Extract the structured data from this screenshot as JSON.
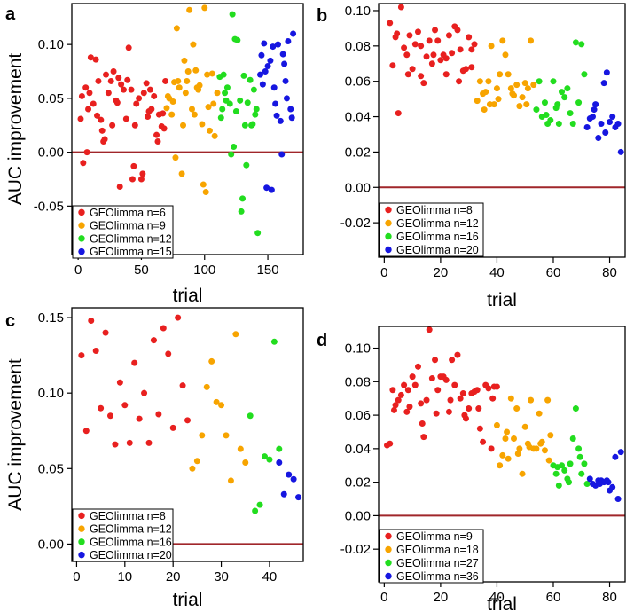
{
  "chart_data": [
    {
      "panel": "a",
      "type": "scatter",
      "xlabel": "trial",
      "ylabel": "AUC improvement",
      "xlim": [
        -5,
        178
      ],
      "ylim": [
        -0.095,
        0.138
      ],
      "xticks": [
        0,
        50,
        100,
        150
      ],
      "xtick_labels": [
        "0",
        "50",
        "100",
        "150"
      ],
      "yticks": [
        -0.05,
        0,
        0.05,
        0.1
      ],
      "ytick_labels": [
        "-0.05",
        "0.00",
        "0.05",
        "0.10"
      ],
      "reference_line": 0,
      "legend_position": "bottom-left",
      "series": [
        {
          "name": "GEOlimma n=6",
          "color": "#e8201f",
          "x": [
            2,
            4,
            6,
            8,
            10,
            12,
            14,
            16,
            18,
            20,
            22,
            24,
            26,
            28,
            30,
            32,
            34,
            36,
            38,
            40,
            42,
            44,
            46,
            48,
            50,
            52,
            54,
            56,
            58,
            60,
            62,
            64,
            66,
            68,
            3,
            9,
            15,
            21,
            27,
            33,
            39,
            45,
            51,
            57,
            63,
            69,
            7,
            19,
            31,
            43,
            55,
            67
          ],
          "y": [
            0.031,
            -0.01,
            0.06,
            0.04,
            0.088,
            0.045,
            0.086,
            0.066,
            0.03,
            0.01,
            0.072,
            0.055,
            0.066,
            0.075,
            0.048,
            0.069,
            0.063,
            0.058,
            0.031,
            0.097,
            0.058,
            -0.013,
            0.045,
            0.05,
            -0.025,
            0.055,
            0.064,
            0.038,
            0.04,
            0.052,
            0.016,
            0.035,
            0.024,
            0.022,
            0.052,
            0.055,
            0.034,
            0.012,
            0.025,
            -0.032,
            0.067,
            0.025,
            -0.02,
            0.058,
            0.01,
            0.066,
            0.0,
            0.02,
            0.046,
            -0.025,
            0.033,
            0.036
          ]
        },
        {
          "name": "GEOlimma n=9",
          "color": "#f7a400",
          "x": [
            70,
            72,
            74,
            76,
            78,
            80,
            82,
            84,
            86,
            88,
            90,
            92,
            94,
            96,
            98,
            100,
            102,
            104,
            106,
            108,
            110,
            71,
            75,
            79,
            83,
            87,
            91,
            95,
            99,
            103,
            107,
            77,
            85,
            93,
            101
          ],
          "y": [
            0.041,
            0.05,
            0.035,
            0.065,
            0.115,
            0.06,
            -0.02,
            0.085,
            0.066,
            0.132,
            0.04,
            0.035,
            0.06,
            0.062,
            0.026,
            0.134,
            0.072,
            0.02,
            0.073,
            0.015,
            0.055,
            0.052,
            0.047,
            0.066,
            0.025,
            0.075,
            0.1,
            0.058,
            -0.03,
            0.042,
            0.045,
            -0.005,
            0.055,
            0.076,
            -0.037
          ]
        },
        {
          "name": "GEOlimma n=12",
          "color": "#22dd1f",
          "x": [
            112,
            114,
            116,
            118,
            120,
            122,
            124,
            126,
            128,
            130,
            132,
            134,
            136,
            138,
            140,
            142,
            113,
            117,
            121,
            125,
            129,
            133,
            137,
            141,
            115,
            123,
            131,
            139
          ],
          "y": [
            0.07,
            0.04,
            0.055,
            0.06,
            0.045,
            0.128,
            0.105,
            0.104,
            0.048,
            -0.043,
            0.025,
            0.046,
            0.067,
            0.026,
            0.035,
            -0.075,
            0.032,
            0.048,
            -0.002,
            0.038,
            -0.055,
            -0.012,
            0.025,
            0.04,
            0.072,
            0.005,
            0.071,
            0.058
          ]
        },
        {
          "name": "GEOlimma n=15",
          "color": "#1616e0",
          "x": [
            144,
            146,
            148,
            150,
            152,
            154,
            156,
            158,
            160,
            162,
            164,
            166,
            168,
            170,
            145,
            149,
            153,
            157,
            161,
            165,
            169,
            147,
            155,
            163
          ],
          "y": [
            0.072,
            0.063,
            0.075,
            0.08,
            0.085,
            0.098,
            0.045,
            0.1,
            0.029,
            0.091,
            0.066,
            0.103,
            0.04,
            0.11,
            0.09,
            -0.033,
            -0.035,
            0.034,
            -0.002,
            0.05,
            0.032,
            0.101,
            0.06,
            0.082
          ]
        }
      ]
    },
    {
      "panel": "b",
      "type": "scatter",
      "xlabel": "trial",
      "ylabel": "",
      "xlim": [
        -2,
        85.5
      ],
      "ylim": [
        -0.0395,
        0.104
      ],
      "xticks": [
        0,
        20,
        40,
        60,
        80
      ],
      "xtick_labels": [
        "0",
        "20",
        "40",
        "60",
        "80"
      ],
      "yticks": [
        -0.02,
        0,
        0.02,
        0.04,
        0.06,
        0.08,
        0.1
      ],
      "ytick_labels": [
        "-0.02",
        "0.00",
        "0.02",
        "0.04",
        "0.06",
        "0.08",
        "0.10"
      ],
      "reference_line": 0,
      "legend_position": "bottom-left",
      "series": [
        {
          "name": "GEOlimma n=8",
          "color": "#e8201f",
          "x": [
            2,
            3,
            4,
            5,
            6,
            7,
            8,
            9,
            10,
            11,
            12,
            13,
            14,
            15,
            16,
            17,
            18,
            19,
            20,
            21,
            22,
            23,
            24,
            25,
            26,
            27,
            28,
            29,
            30,
            31,
            32,
            4.5,
            8.5,
            13,
            17.5,
            22,
            26.5,
            31
          ],
          "y": [
            0.093,
            0.069,
            0.085,
            0.042,
            0.102,
            0.079,
            0.075,
            0.086,
            0.067,
            0.081,
            0.088,
            0.063,
            0.059,
            0.074,
            0.083,
            0.07,
            0.089,
            0.083,
            0.072,
            0.075,
            0.073,
            0.086,
            0.076,
            0.091,
            0.089,
            0.078,
            0.066,
            0.067,
            0.085,
            0.068,
            0.081,
            0.087,
            0.064,
            0.08,
            0.075,
            0.064,
            0.06,
            0.078
          ]
        },
        {
          "name": "GEOlimma n=12",
          "color": "#f7a400",
          "x": [
            33,
            34,
            35,
            36,
            37,
            38,
            39,
            40,
            41,
            42,
            43,
            44,
            45,
            46,
            47,
            48,
            49,
            50,
            51,
            52,
            53,
            35.5,
            40.5,
            45.5,
            50.5,
            37.5
          ],
          "y": [
            0.049,
            0.06,
            0.053,
            0.054,
            0.06,
            0.08,
            0.047,
            0.056,
            0.064,
            0.083,
            0.075,
            0.064,
            0.056,
            0.052,
            0.058,
            0.046,
            0.051,
            0.059,
            0.056,
            0.083,
            0.058,
            0.044,
            0.05,
            0.053,
            0.047,
            0.047
          ]
        },
        {
          "name": "GEOlimma n=16",
          "color": "#22dd1f",
          "x": [
            54,
            55,
            56,
            57,
            58,
            59,
            60,
            61,
            62,
            63,
            64,
            65,
            66,
            67,
            68,
            69,
            70,
            71,
            57.5,
            61.5
          ],
          "y": [
            0.044,
            0.06,
            0.04,
            0.048,
            0.036,
            0.038,
            0.06,
            0.045,
            0.036,
            0.054,
            0.051,
            0.056,
            0.042,
            0.036,
            0.082,
            0.048,
            0.081,
            0.064,
            0.041,
            0.047
          ]
        },
        {
          "name": "GEOlimma n=20",
          "color": "#1616e0",
          "x": [
            72,
            73,
            74,
            75,
            76,
            77,
            78,
            79,
            80,
            81,
            82,
            83,
            84,
            74.5,
            78.5
          ],
          "y": [
            0.034,
            0.039,
            0.04,
            0.047,
            0.028,
            0.036,
            0.059,
            0.065,
            0.037,
            0.04,
            0.034,
            0.036,
            0.02,
            0.044,
            0.031
          ]
        }
      ]
    },
    {
      "panel": "c",
      "type": "scatter",
      "xlabel": "trial",
      "ylabel": "AUC improvement",
      "xlim": [
        -1,
        47
      ],
      "ylim": [
        -0.0115,
        0.1565
      ],
      "xticks": [
        0,
        10,
        20,
        30,
        40
      ],
      "xtick_labels": [
        "0",
        "10",
        "20",
        "30",
        "40"
      ],
      "yticks": [
        0,
        0.05,
        0.1,
        0.15
      ],
      "ytick_labels": [
        "0.00",
        "0.05",
        "0.10",
        "0.15"
      ],
      "reference_line": 0,
      "legend_position": "bottom-left",
      "series": [
        {
          "name": "GEOlimma n=8",
          "color": "#e8201f",
          "x": [
            1,
            2,
            3,
            4,
            5,
            6,
            7,
            8,
            9,
            10,
            11,
            12,
            13,
            14,
            15,
            16,
            17,
            18,
            19,
            20,
            21,
            22,
            23
          ],
          "y": [
            0.125,
            0.075,
            0.148,
            0.128,
            0.09,
            0.14,
            0.085,
            0.066,
            0.107,
            0.092,
            0.067,
            0.12,
            0.083,
            0.1,
            0.067,
            0.135,
            0.086,
            0.143,
            0.126,
            0.077,
            0.15,
            0.105,
            0.082
          ]
        },
        {
          "name": "GEOlimma n=12",
          "color": "#f7a400",
          "x": [
            24,
            25,
            26,
            27,
            28,
            29,
            30,
            31,
            32,
            33,
            34,
            35
          ],
          "y": [
            0.05,
            0.055,
            0.072,
            0.104,
            0.121,
            0.094,
            0.092,
            0.072,
            0.042,
            0.139,
            0.063,
            0.054
          ]
        },
        {
          "name": "GEOlimma n=16",
          "color": "#22dd1f",
          "x": [
            36,
            37,
            38,
            39,
            40,
            41,
            42
          ],
          "y": [
            0.085,
            0.022,
            0.026,
            0.058,
            0.056,
            0.134,
            0.063
          ]
        },
        {
          "name": "GEOlimma n=20",
          "color": "#1616e0",
          "x": [
            42,
            43,
            44,
            45,
            46
          ],
          "y": [
            0.054,
            0.033,
            0.046,
            0.043,
            0.031
          ]
        }
      ]
    },
    {
      "panel": "d",
      "type": "scatter",
      "xlabel": "trial",
      "ylabel": "",
      "xlim": [
        -2,
        85.5
      ],
      "ylim": [
        -0.0395,
        0.113
      ],
      "xticks": [
        0,
        20,
        40,
        60,
        80
      ],
      "xtick_labels": [
        "0",
        "20",
        "40",
        "60",
        "80"
      ],
      "yticks": [
        -0.02,
        0,
        0.02,
        0.04,
        0.06,
        0.08,
        0.1
      ],
      "ytick_labels": [
        "-0.02",
        "0.00",
        "0.02",
        "0.04",
        "0.06",
        "0.08",
        "0.10"
      ],
      "reference_line": 0,
      "legend_position": "bottom-left",
      "series": [
        {
          "name": "GEOlimma n=9",
          "color": "#e8201f",
          "x": [
            1,
            2,
            3,
            4,
            5,
            6,
            7,
            8,
            9,
            10,
            11,
            12,
            13,
            14,
            15,
            16,
            17,
            18,
            19,
            20,
            21,
            22,
            23,
            24,
            25,
            26,
            27,
            28,
            29,
            30,
            31,
            32,
            33,
            34,
            35,
            36,
            37,
            38,
            39,
            40,
            3.5,
            8.5,
            13.5,
            18.5,
            23.5,
            28.5,
            33.5,
            38.5
          ],
          "y": [
            0.042,
            0.043,
            0.075,
            0.066,
            0.069,
            0.072,
            0.078,
            0.062,
            0.065,
            0.083,
            0.078,
            0.089,
            0.067,
            0.047,
            0.069,
            0.111,
            0.082,
            0.093,
            0.075,
            0.083,
            0.083,
            0.081,
            0.062,
            0.093,
            0.078,
            0.096,
            0.07,
            0.073,
            0.058,
            0.064,
            0.073,
            0.074,
            0.075,
            0.052,
            0.044,
            0.078,
            0.076,
            0.04,
            0.077,
            0.077,
            0.063,
            0.075,
            0.055,
            0.061,
            0.069,
            0.06,
            0.064,
            0.07
          ]
        },
        {
          "name": "GEOlimma n=18",
          "color": "#f7a400",
          "x": [
            40,
            41,
            42,
            43,
            44,
            45,
            46,
            47,
            48,
            49,
            50,
            51,
            52,
            53,
            54,
            55,
            56,
            57,
            58,
            59,
            43.5,
            47.5,
            51.5,
            55.5,
            58.5
          ],
          "y": [
            0.054,
            0.03,
            0.036,
            0.046,
            0.034,
            0.07,
            0.046,
            0.064,
            0.04,
            0.025,
            0.053,
            0.043,
            0.069,
            0.04,
            0.04,
            0.061,
            0.044,
            0.039,
            0.069,
            0.048,
            0.05,
            0.037,
            0.041,
            0.043,
            0.033
          ]
        },
        {
          "name": "GEOlimma n=27",
          "color": "#22dd1f",
          "x": [
            60,
            61,
            62,
            63,
            64,
            65,
            66,
            67,
            68,
            69,
            70,
            71,
            72,
            61.5,
            65.5,
            69.5
          ],
          "y": [
            0.03,
            0.025,
            0.018,
            0.03,
            0.027,
            0.022,
            0.031,
            0.046,
            0.064,
            0.04,
            0.025,
            0.031,
            0.019,
            0.029,
            0.02,
            0.035
          ]
        },
        {
          "name": "GEOlimma n=36",
          "color": "#1616e0",
          "x": [
            73,
            74,
            75,
            76,
            77,
            78,
            79,
            80,
            81,
            82,
            83,
            84,
            76.5,
            79.5
          ],
          "y": [
            0.022,
            0.019,
            0.018,
            0.021,
            0.021,
            0.02,
            0.021,
            0.015,
            0.017,
            0.035,
            0.01,
            0.038,
            0.019,
            0.02
          ]
        }
      ]
    }
  ]
}
